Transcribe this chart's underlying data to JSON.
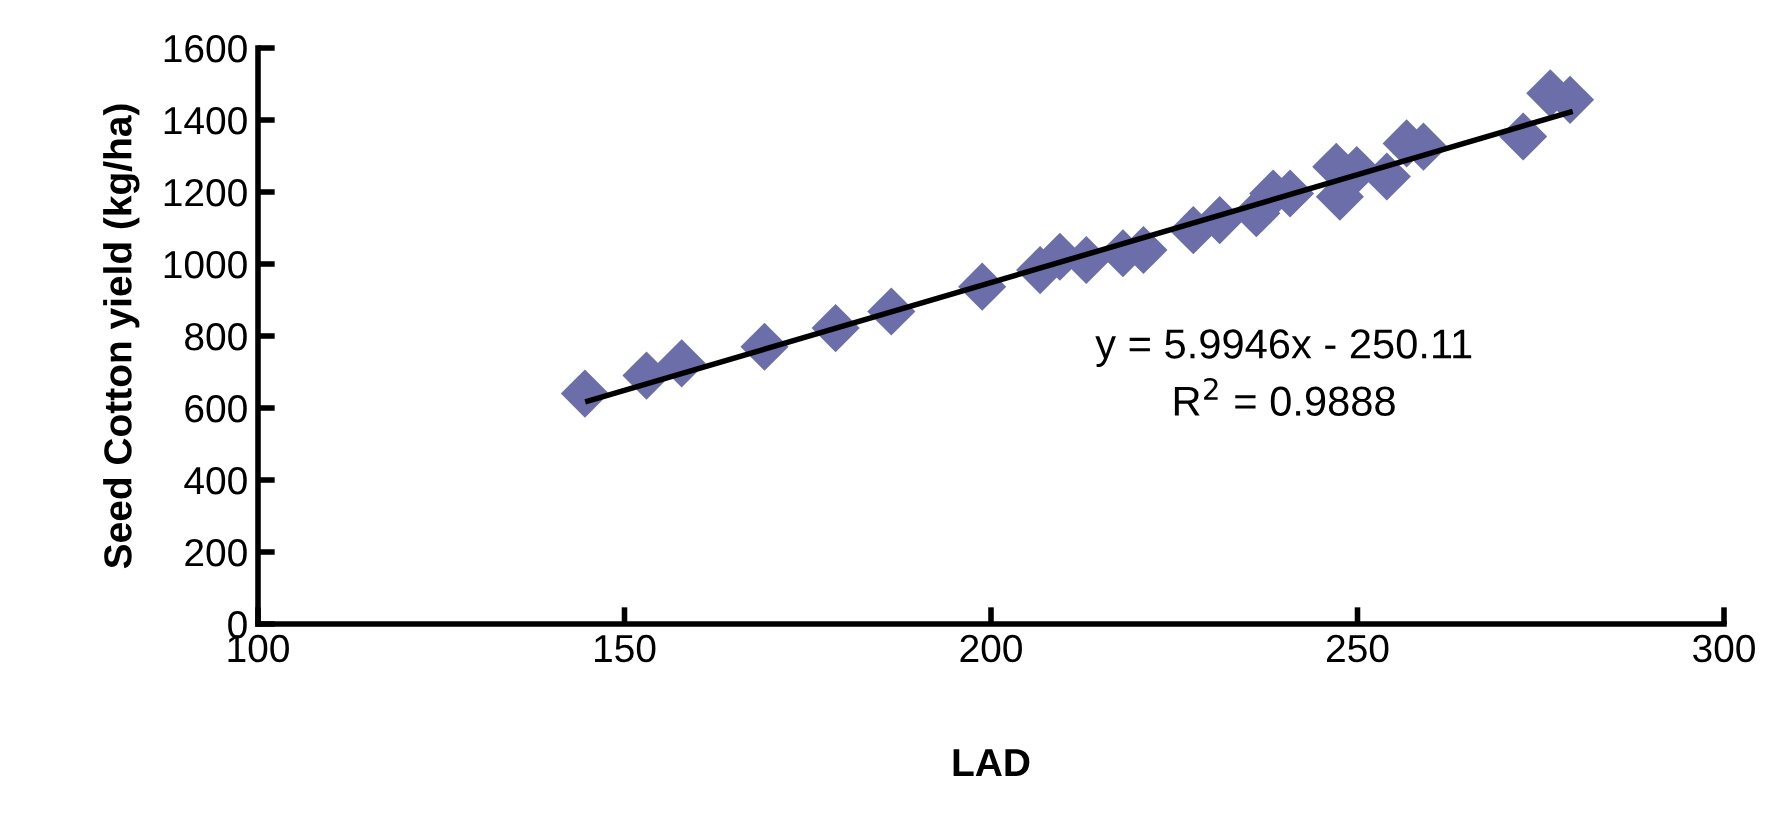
{
  "chart_data": {
    "type": "scatter",
    "xlabel": "LAD",
    "ylabel": "Seed Cotton yield (kg/ha)",
    "xlim": [
      100,
      300
    ],
    "xticks": [
      100,
      150,
      200,
      250,
      300
    ],
    "ylim": [
      0,
      1600
    ],
    "yticks": [
      0,
      200,
      400,
      600,
      800,
      1000,
      1200,
      1400,
      1600
    ],
    "grid": false,
    "legend": false,
    "marker": "diamond",
    "series": [
      {
        "color": "#6b6ea8",
        "x": [
          144.6,
          153.0,
          157.8,
          169.1,
          178.8,
          186.4,
          198.8,
          206.7,
          209.4,
          213.0,
          218.0,
          220.8,
          227.6,
          231.2,
          236.2,
          238.5,
          240.8,
          247.1,
          247.6,
          249.9,
          254.0,
          256.7,
          259.0,
          272.6,
          276.3,
          279.0
        ],
        "values": [
          640,
          690,
          724,
          770,
          822,
          868,
          937,
          983,
          1020,
          1011,
          1030,
          1039,
          1094,
          1122,
          1141,
          1196,
          1196,
          1270,
          1187,
          1261,
          1243,
          1335,
          1326,
          1354,
          1474,
          1456
        ]
      },
      {
        "type": "line",
        "color": "#000000",
        "marker": "none",
        "x": [
          145,
          279
        ],
        "values": [
          619,
          1422
        ]
      }
    ],
    "annotations": [
      "y = 5.9946x - 250.11",
      "R$^{2}$ = 0.9888"
    ]
  }
}
